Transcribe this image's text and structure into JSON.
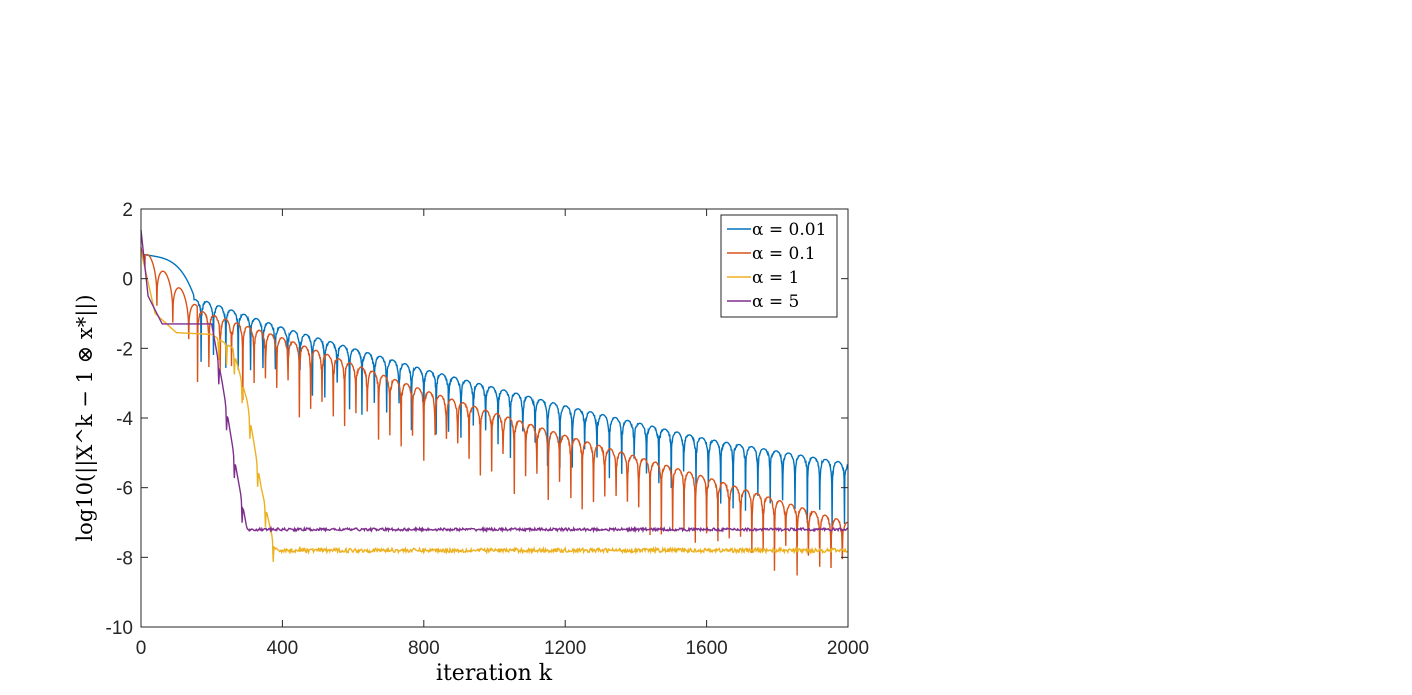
{
  "chart_data": {
    "type": "line",
    "xlabel": "iteration k",
    "ylabel": "log10(||X^k − 1 ⊗ x*||)",
    "xlim": [
      0,
      2000
    ],
    "ylim": [
      -10,
      2
    ],
    "xticks": [
      "0",
      "400",
      "800",
      "1200",
      "1600",
      "2000"
    ],
    "yticks": [
      "2",
      "0",
      "-2",
      "-4",
      "-6",
      "-8",
      "-10"
    ],
    "grid": false,
    "legend_position": "top-right",
    "series": [
      {
        "name": "α = 0.01",
        "color": "#0072BD",
        "descriptor": "oscillatory-decay",
        "start": 0.7,
        "plateau_y": 0.5,
        "plateau_end": 150,
        "peak_points": [
          [
            170,
            -0.6
          ],
          [
            400,
            -1.4
          ],
          [
            800,
            -2.6
          ],
          [
            1200,
            -3.65
          ],
          [
            1600,
            -4.6
          ],
          [
            2000,
            -5.3
          ]
        ],
        "period": 35,
        "spike_depth": 1.6
      },
      {
        "name": "α = 0.1",
        "color": "#D95319",
        "descriptor": "oscillatory-decay",
        "start": 0.9,
        "early_peaks": [
          [
            30,
            -0.4
          ],
          [
            80,
            -0.5
          ],
          [
            120,
            -0.7
          ]
        ],
        "peak_points": [
          [
            160,
            -0.9
          ],
          [
            400,
            -1.7
          ],
          [
            800,
            -3.2
          ],
          [
            1200,
            -4.5
          ],
          [
            1600,
            -5.7
          ],
          [
            2000,
            -7.0
          ]
        ],
        "period": 32,
        "spike_depth": 1.8
      },
      {
        "name": "α = 1",
        "color": "#EDB120",
        "descriptor": "fast-then-floor",
        "start": 0.8,
        "points": [
          [
            0,
            0.8
          ],
          [
            40,
            -1.0
          ],
          [
            100,
            -1.55
          ],
          [
            200,
            -1.6
          ],
          [
            260,
            -2.0
          ],
          [
            300,
            -3.5
          ],
          [
            340,
            -6.0
          ],
          [
            380,
            -7.8
          ],
          [
            2000,
            -7.8
          ]
        ],
        "floor": -7.8,
        "floor_noise": 0.06
      },
      {
        "name": "α = 5",
        "color": "#7E2F8E",
        "descriptor": "fast-then-floor",
        "start": 1.4,
        "points": [
          [
            0,
            1.4
          ],
          [
            20,
            -0.5
          ],
          [
            60,
            -1.3
          ],
          [
            200,
            -1.3
          ],
          [
            230,
            -3.0
          ],
          [
            270,
            -5.5
          ],
          [
            300,
            -7.2
          ],
          [
            2000,
            -7.2
          ]
        ],
        "floor": -7.2,
        "floor_noise": 0.04
      }
    ]
  }
}
